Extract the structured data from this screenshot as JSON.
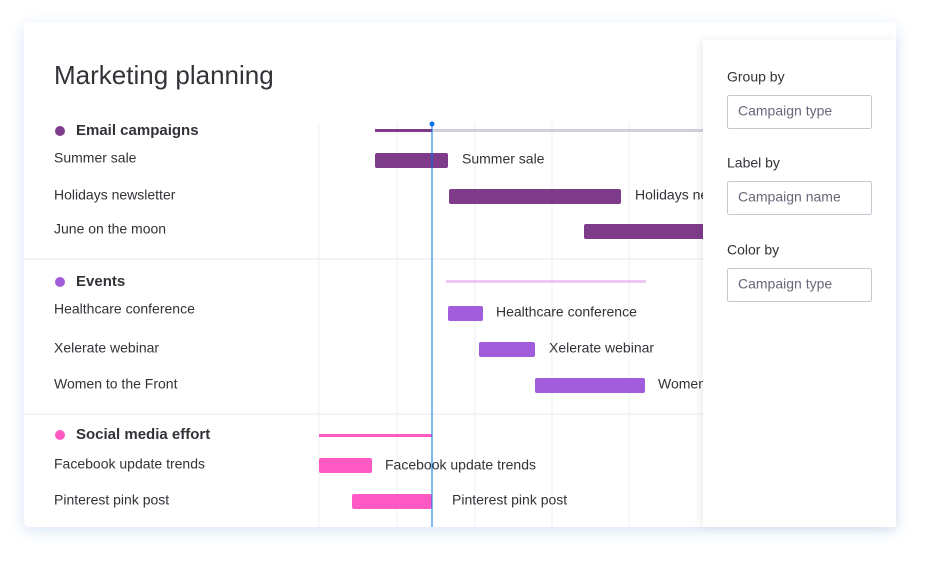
{
  "title": "Marketing planning",
  "groups": [
    {
      "name": "Email campaigns",
      "items": [
        "Summer sale",
        "Holidays newsletter",
        "June on the moon"
      ]
    },
    {
      "name": "Events",
      "items": [
        "Healthcare conference",
        "Xelerate webinar",
        "Women to the Front"
      ]
    },
    {
      "name": "Social media effort",
      "items": [
        "Facebook update trends",
        "Pinterest pink post"
      ]
    }
  ],
  "panel": [
    {
      "label": "Group by",
      "value": "Campaign type"
    },
    {
      "label": "Label by",
      "value": "Campaign name"
    },
    {
      "label": "Color by",
      "value": "Campaign type"
    }
  ]
}
